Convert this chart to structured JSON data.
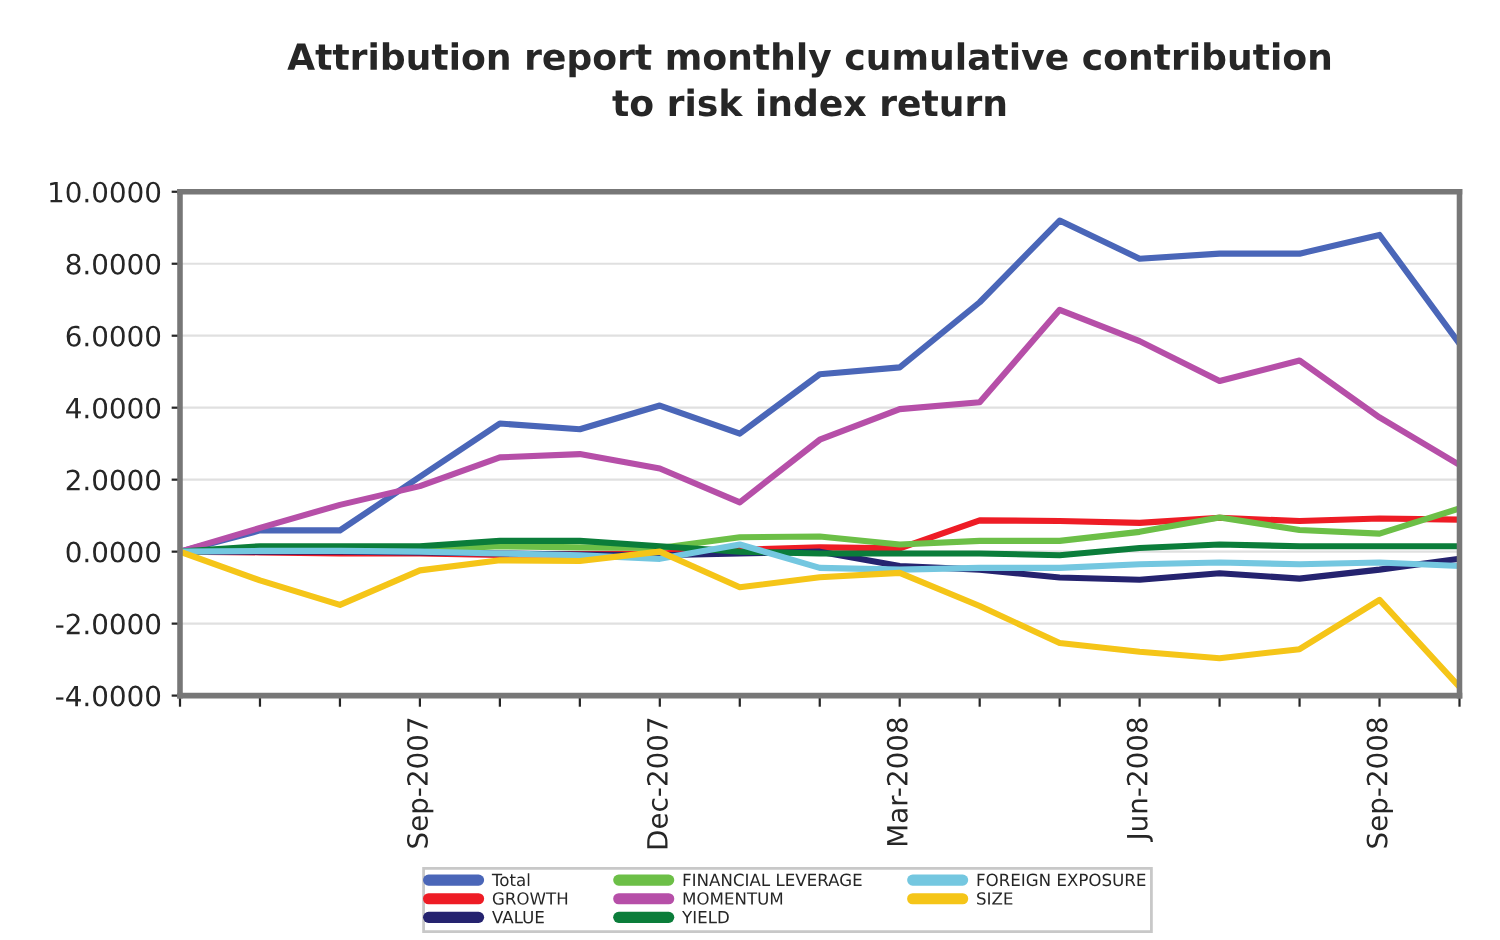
{
  "chart_data": {
    "type": "line",
    "title": "Attribution report monthly cumulative contribution\nto risk index return",
    "categories": [
      null,
      null,
      null,
      "Sep-2007",
      null,
      null,
      "Dec-2007",
      null,
      null,
      "Mar-2008",
      null,
      null,
      "Jun-2008",
      null,
      null,
      "Sep-2008",
      null
    ],
    "series": [
      {
        "name": "Total",
        "color": "#4a66b8",
        "values": [
          0,
          0.59,
          0.59,
          2.08,
          3.56,
          3.4,
          4.06,
          3.28,
          4.93,
          5.12,
          6.93,
          9.2,
          8.14,
          8.28,
          8.28,
          8.8,
          5.78
        ]
      },
      {
        "name": "GROWTH",
        "color": "#ee1c25",
        "values": [
          0,
          -0.02,
          -0.05,
          -0.05,
          -0.09,
          -0.07,
          -0.05,
          0.05,
          0.12,
          0.09,
          0.87,
          0.85,
          0.8,
          0.94,
          0.85,
          0.92,
          0.89
        ]
      },
      {
        "name": "VALUE",
        "color": "#25236f",
        "values": [
          0,
          0,
          0,
          -0.02,
          -0.05,
          -0.08,
          -0.1,
          -0.05,
          0,
          -0.4,
          -0.5,
          -0.72,
          -0.78,
          -0.6,
          -0.75,
          -0.5,
          -0.2
        ]
      },
      {
        "name": "FINANCIAL LEVERAGE",
        "color": "#6cbf47",
        "values": [
          0,
          0.05,
          0.05,
          0.05,
          0.15,
          0.12,
          0.1,
          0.4,
          0.42,
          0.2,
          0.3,
          0.3,
          0.55,
          0.95,
          0.6,
          0.5,
          1.2
        ]
      },
      {
        "name": "MOMENTUM",
        "color": "#b64fa8",
        "values": [
          0,
          0.66,
          1.3,
          1.82,
          2.62,
          2.71,
          2.31,
          1.37,
          3.11,
          3.96,
          4.15,
          6.72,
          5.85,
          4.74,
          5.31,
          3.73,
          2.41
        ]
      },
      {
        "name": "YIELD",
        "color": "#0b7d3a",
        "values": [
          0,
          0.15,
          0.15,
          0.15,
          0.3,
          0.3,
          0.15,
          0,
          -0.05,
          -0.05,
          -0.05,
          -0.1,
          0.1,
          0.2,
          0.15,
          0.15,
          0.15
        ]
      },
      {
        "name": "FOREIGN EXPOSURE",
        "color": "#74c7e0",
        "values": [
          0,
          0.02,
          0.02,
          0,
          -0.05,
          -0.1,
          -0.2,
          0.2,
          -0.45,
          -0.5,
          -0.45,
          -0.45,
          -0.35,
          -0.3,
          -0.35,
          -0.3,
          -0.4
        ]
      },
      {
        "name": "SIZE",
        "color": "#f5c518",
        "values": [
          0,
          -0.8,
          -1.48,
          -0.52,
          -0.24,
          -0.26,
          0,
          -0.99,
          -0.71,
          -0.59,
          -1.51,
          -2.54,
          -2.78,
          -2.96,
          -2.71,
          -1.34,
          -3.76
        ]
      }
    ],
    "ylim": [
      -4,
      10
    ],
    "yticks": [
      {
        "value": -4,
        "label": "-4.0000"
      },
      {
        "value": -2,
        "label": "-2.0000"
      },
      {
        "value": 0,
        "label": "0.0000"
      },
      {
        "value": 2,
        "label": "2.0000"
      },
      {
        "value": 4,
        "label": "4.0000"
      },
      {
        "value": 6,
        "label": "6.0000"
      },
      {
        "value": 8,
        "label": "8.0000"
      },
      {
        "value": 10,
        "label": "10.0000"
      }
    ],
    "grid": "y",
    "legend": "bottom",
    "marker": "none",
    "line_style": "solid"
  }
}
